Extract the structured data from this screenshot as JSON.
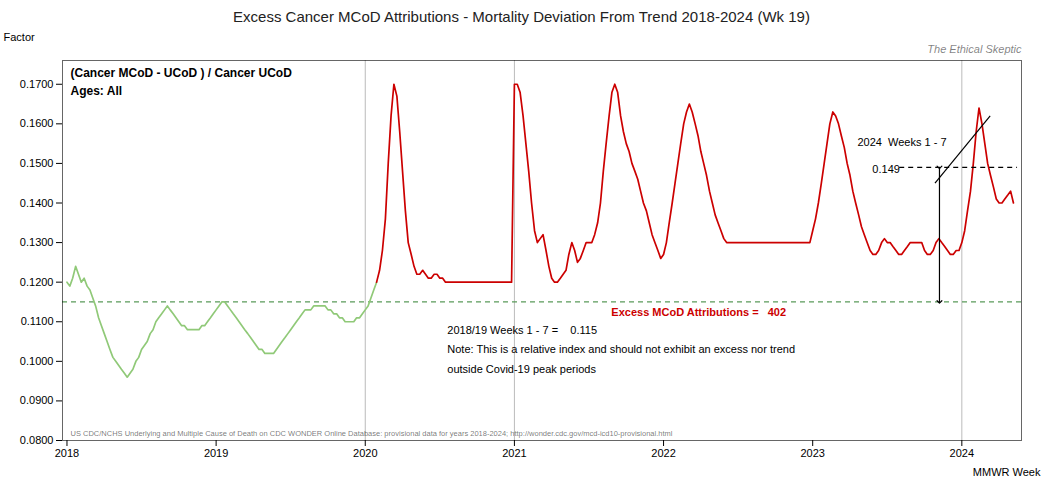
{
  "chart_data": {
    "type": "line",
    "title": "Excess Cancer  MCoD Attributions - Mortality Deviation From Trend  2018-2024 (Wk 19)",
    "subtitle": [
      "(Cancer MCoD - UCoD ) / Cancer UCoD",
      "Ages: All"
    ],
    "watermark": "The Ethical Skeptic",
    "source": "US CDC/NCHS Underlying and Multiple Cause of Death on CDC WONDER Online Database: provisional data for years 2018-2024; http://wonder.cdc.gov/mcd-icd10-provisional.html",
    "x_label": "MMWR Week",
    "y_label": "Factor",
    "xlim": [
      2017.97,
      2024.4
    ],
    "xticks": [
      2018,
      2019,
      2020,
      2021,
      2022,
      2023,
      2024
    ],
    "ylim": [
      0.08,
      0.176
    ],
    "yticks": [
      {
        "value": 0.08,
        "label": "0.0800"
      },
      {
        "value": 0.09,
        "label": "0.0900"
      },
      {
        "value": 0.1,
        "label": "0.1000"
      },
      {
        "value": 0.11,
        "label": "0.1100"
      },
      {
        "value": 0.12,
        "label": "0.1200"
      },
      {
        "value": 0.13,
        "label": "0.1300"
      },
      {
        "value": 0.14,
        "label": "0.1400"
      },
      {
        "value": 0.15,
        "label": "0.1500"
      },
      {
        "value": 0.16,
        "label": "0.1600"
      },
      {
        "value": 0.17,
        "label": "0.1700"
      }
    ],
    "grid": false,
    "series": [
      {
        "color": "#90c978",
        "x": [
          2018.0,
          2018.019,
          2018.038,
          2018.058,
          2018.077,
          2018.096,
          2018.115,
          2018.135,
          2018.154,
          2018.173,
          2018.192,
          2018.212,
          2018.231,
          2018.25,
          2018.269,
          2018.288,
          2018.308,
          2018.327,
          2018.346,
          2018.365,
          2018.385,
          2018.404,
          2018.423,
          2018.442,
          2018.462,
          2018.481,
          2018.5,
          2018.519,
          2018.538,
          2018.558,
          2018.577,
          2018.596,
          2018.615,
          2018.635,
          2018.654,
          2018.673,
          2018.692,
          2018.712,
          2018.731,
          2018.75,
          2018.769,
          2018.788,
          2018.808,
          2018.827,
          2018.846,
          2018.865,
          2018.885,
          2018.904,
          2018.923,
          2018.942,
          2018.962,
          2018.981,
          2019.0,
          2019.019,
          2019.038,
          2019.058,
          2019.077,
          2019.096,
          2019.115,
          2019.135,
          2019.154,
          2019.173,
          2019.192,
          2019.212,
          2019.231,
          2019.25,
          2019.269,
          2019.288,
          2019.308,
          2019.327,
          2019.346,
          2019.365,
          2019.385,
          2019.404,
          2019.423,
          2019.442,
          2019.462,
          2019.481,
          2019.5,
          2019.519,
          2019.538,
          2019.558,
          2019.577,
          2019.596,
          2019.615,
          2019.635,
          2019.654,
          2019.673,
          2019.692,
          2019.712,
          2019.731,
          2019.75,
          2019.769,
          2019.788,
          2019.808,
          2019.827,
          2019.846,
          2019.865,
          2019.885,
          2019.904,
          2019.923,
          2019.942,
          2019.962,
          2019.981,
          2020.0,
          2020.019,
          2020.038,
          2020.057,
          2020.076
        ],
        "values": [
          0.12,
          0.119,
          0.121,
          0.124,
          0.122,
          0.12,
          0.121,
          0.119,
          0.118,
          0.116,
          0.114,
          0.111,
          0.109,
          0.107,
          0.105,
          0.103,
          0.101,
          0.1,
          0.099,
          0.098,
          0.097,
          0.096,
          0.097,
          0.098,
          0.1,
          0.101,
          0.103,
          0.104,
          0.105,
          0.107,
          0.108,
          0.11,
          0.111,
          0.112,
          0.113,
          0.114,
          0.113,
          0.112,
          0.111,
          0.11,
          0.109,
          0.109,
          0.108,
          0.108,
          0.108,
          0.108,
          0.108,
          0.109,
          0.109,
          0.11,
          0.111,
          0.112,
          0.113,
          0.114,
          0.115,
          0.115,
          0.114,
          0.113,
          0.112,
          0.111,
          0.11,
          0.109,
          0.108,
          0.107,
          0.106,
          0.105,
          0.104,
          0.103,
          0.103,
          0.102,
          0.102,
          0.102,
          0.102,
          0.103,
          0.104,
          0.105,
          0.106,
          0.107,
          0.108,
          0.109,
          0.11,
          0.111,
          0.112,
          0.113,
          0.113,
          0.113,
          0.114,
          0.114,
          0.114,
          0.114,
          0.114,
          0.113,
          0.113,
          0.112,
          0.112,
          0.111,
          0.111,
          0.11,
          0.11,
          0.11,
          0.11,
          0.111,
          0.111,
          0.112,
          0.113,
          0.114,
          0.116,
          0.118,
          0.12
        ]
      },
      {
        "color": "#cc0000",
        "x": [
          2020.076,
          2020.096,
          2020.115,
          2020.135,
          2020.154,
          2020.173,
          2020.192,
          2020.212,
          2020.231,
          2020.25,
          2020.269,
          2020.288,
          2020.308,
          2020.327,
          2020.346,
          2020.365,
          2020.385,
          2020.404,
          2020.423,
          2020.442,
          2020.462,
          2020.481,
          2020.5,
          2020.519,
          2020.538,
          2020.558,
          2020.577,
          2020.596,
          2020.615,
          2020.635,
          2020.654,
          2020.673,
          2020.692,
          2020.712,
          2020.731,
          2020.75,
          2020.769,
          2020.788,
          2020.808,
          2020.827,
          2020.846,
          2020.865,
          2020.885,
          2020.904,
          2020.923,
          2020.942,
          2020.962,
          2020.981,
          2021.0,
          2021.019,
          2021.038,
          2021.058,
          2021.077,
          2021.096,
          2021.115,
          2021.135,
          2021.154,
          2021.173,
          2021.192,
          2021.212,
          2021.231,
          2021.25,
          2021.269,
          2021.288,
          2021.308,
          2021.327,
          2021.346,
          2021.365,
          2021.385,
          2021.404,
          2021.423,
          2021.442,
          2021.462,
          2021.481,
          2021.5,
          2021.519,
          2021.538,
          2021.558,
          2021.577,
          2021.596,
          2021.615,
          2021.635,
          2021.654,
          2021.673,
          2021.692,
          2021.712,
          2021.731,
          2021.75,
          2021.769,
          2021.788,
          2021.808,
          2021.827,
          2021.846,
          2021.865,
          2021.885,
          2021.904,
          2021.923,
          2021.942,
          2021.962,
          2021.981,
          2022.0,
          2022.019,
          2022.038,
          2022.058,
          2022.077,
          2022.096,
          2022.115,
          2022.135,
          2022.154,
          2022.173,
          2022.192,
          2022.212,
          2022.231,
          2022.25,
          2022.269,
          2022.288,
          2022.308,
          2022.327,
          2022.346,
          2022.365,
          2022.385,
          2022.404,
          2022.423,
          2022.442,
          2022.462,
          2022.481,
          2022.5,
          2022.519,
          2022.538,
          2022.558,
          2022.577,
          2022.596,
          2022.615,
          2022.635,
          2022.654,
          2022.673,
          2022.692,
          2022.712,
          2022.731,
          2022.75,
          2022.769,
          2022.788,
          2022.808,
          2022.827,
          2022.846,
          2022.865,
          2022.885,
          2022.904,
          2022.923,
          2022.942,
          2022.962,
          2022.981,
          2023.0,
          2023.019,
          2023.038,
          2023.058,
          2023.077,
          2023.096,
          2023.115,
          2023.135,
          2023.154,
          2023.173,
          2023.192,
          2023.212,
          2023.231,
          2023.25,
          2023.269,
          2023.288,
          2023.308,
          2023.327,
          2023.346,
          2023.365,
          2023.385,
          2023.404,
          2023.423,
          2023.442,
          2023.462,
          2023.481,
          2023.5,
          2023.519,
          2023.538,
          2023.558,
          2023.577,
          2023.596,
          2023.615,
          2023.635,
          2023.654,
          2023.673,
          2023.692,
          2023.712,
          2023.731,
          2023.75,
          2023.769,
          2023.788,
          2023.808,
          2023.827,
          2023.846,
          2023.865,
          2023.885,
          2023.904,
          2023.923,
          2023.942,
          2023.962,
          2023.981,
          2024.0,
          2024.019,
          2024.038,
          2024.058,
          2024.077,
          2024.096,
          2024.115,
          2024.135,
          2024.154,
          2024.173,
          2024.192,
          2024.212,
          2024.231,
          2024.25,
          2024.269,
          2024.288,
          2024.308,
          2024.327,
          2024.346
        ],
        "values": [
          0.12,
          0.123,
          0.128,
          0.136,
          0.15,
          0.162,
          0.17,
          0.167,
          0.158,
          0.148,
          0.138,
          0.13,
          0.127,
          0.124,
          0.122,
          0.122,
          0.123,
          0.122,
          0.121,
          0.121,
          0.122,
          0.122,
          0.121,
          0.121,
          0.12,
          0.12,
          0.12,
          0.12,
          0.12,
          0.12,
          0.12,
          0.12,
          0.12,
          0.12,
          0.12,
          0.12,
          0.12,
          0.12,
          0.12,
          0.12,
          0.12,
          0.12,
          0.12,
          0.12,
          0.12,
          0.12,
          0.12,
          0.12,
          0.17,
          0.17,
          0.168,
          0.162,
          0.155,
          0.148,
          0.14,
          0.133,
          0.13,
          0.131,
          0.132,
          0.128,
          0.124,
          0.121,
          0.12,
          0.12,
          0.121,
          0.122,
          0.123,
          0.127,
          0.13,
          0.128,
          0.125,
          0.126,
          0.128,
          0.13,
          0.13,
          0.13,
          0.132,
          0.135,
          0.14,
          0.148,
          0.155,
          0.162,
          0.168,
          0.17,
          0.168,
          0.162,
          0.158,
          0.155,
          0.153,
          0.15,
          0.148,
          0.146,
          0.143,
          0.14,
          0.138,
          0.135,
          0.132,
          0.13,
          0.128,
          0.126,
          0.127,
          0.13,
          0.135,
          0.14,
          0.145,
          0.15,
          0.155,
          0.16,
          0.163,
          0.165,
          0.163,
          0.16,
          0.157,
          0.153,
          0.15,
          0.147,
          0.143,
          0.14,
          0.137,
          0.135,
          0.133,
          0.131,
          0.13,
          0.13,
          0.13,
          0.13,
          0.13,
          0.13,
          0.13,
          0.13,
          0.13,
          0.13,
          0.13,
          0.13,
          0.13,
          0.13,
          0.13,
          0.13,
          0.13,
          0.13,
          0.13,
          0.13,
          0.13,
          0.13,
          0.13,
          0.13,
          0.13,
          0.13,
          0.13,
          0.13,
          0.13,
          0.13,
          0.133,
          0.136,
          0.14,
          0.145,
          0.15,
          0.155,
          0.16,
          0.163,
          0.162,
          0.16,
          0.157,
          0.154,
          0.15,
          0.147,
          0.143,
          0.14,
          0.137,
          0.134,
          0.132,
          0.13,
          0.128,
          0.127,
          0.127,
          0.128,
          0.13,
          0.131,
          0.13,
          0.13,
          0.129,
          0.128,
          0.127,
          0.127,
          0.128,
          0.129,
          0.13,
          0.13,
          0.13,
          0.13,
          0.13,
          0.128,
          0.127,
          0.127,
          0.128,
          0.13,
          0.131,
          0.13,
          0.129,
          0.128,
          0.127,
          0.127,
          0.128,
          0.128,
          0.13,
          0.133,
          0.138,
          0.143,
          0.15,
          0.158,
          0.164,
          0.16,
          0.155,
          0.15,
          0.147,
          0.144,
          0.141,
          0.14,
          0.14,
          0.141,
          0.142,
          0.143,
          0.14
        ]
      }
    ],
    "hlines": [
      {
        "y": 0.115,
        "color": "#5a9a5a",
        "line_style": "dashed"
      }
    ],
    "vlines": [
      {
        "x": 2020.0,
        "color": "#bbbbbb"
      },
      {
        "x": 2021.0,
        "color": "#bbbbbb"
      },
      {
        "x": 2024.0,
        "color": "#bbbbbb"
      }
    ],
    "segments": [
      {
        "x1": 2023.58,
        "y1": 0.149,
        "x2": 2024.37,
        "y2": 0.149,
        "line_style": "dashed"
      },
      {
        "x1": 2023.85,
        "y1": 0.149,
        "x2": 2023.85,
        "y2": 0.115,
        "marker": "arrow"
      },
      {
        "x1": 2023.82,
        "y1": 0.145,
        "x2": 2024.19,
        "y2": 0.162
      }
    ],
    "annotations": [
      {
        "text": "2018/19 Weeks 1 - 7 =    0.115",
        "x": 2020.55,
        "y": 0.109
      },
      {
        "text": "Note: This is a relative index and should not exhibit an excess nor trend",
        "x": 2020.55,
        "y": 0.104
      },
      {
        "text": "outside Covid-19 peak periods",
        "x": 2020.55,
        "y": 0.099
      },
      {
        "text": "Excess MCoD Attributions =   402",
        "x": 2021.65,
        "y": 0.1135,
        "color": "#cc0000"
      },
      {
        "text": "2024  Weeks 1 - 7",
        "x": 2023.3,
        "y": 0.1565
      },
      {
        "text": "0.149",
        "x": 2023.4,
        "y": 0.1495
      }
    ]
  }
}
